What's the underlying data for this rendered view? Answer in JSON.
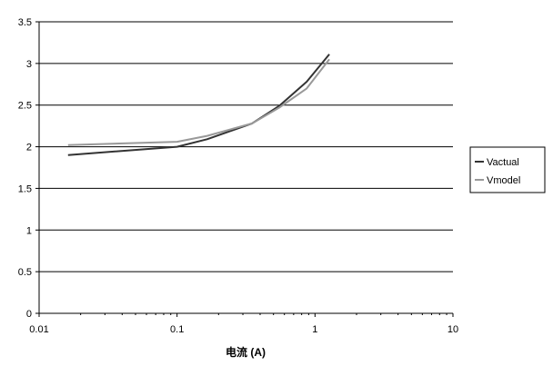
{
  "chart_data": {
    "type": "line",
    "title": "",
    "xlabel": "电流 (A)",
    "ylabel": "",
    "xscale": "log",
    "xlim": [
      0.01,
      10
    ],
    "ylim": [
      0,
      3.5
    ],
    "xticks": [
      "0.01",
      "0.1",
      "1",
      "10"
    ],
    "yticks": [
      "0",
      "0.5",
      "1",
      "1.5",
      "2",
      "2.5",
      "3",
      "3.5"
    ],
    "grid": "horizontal",
    "legend": "right",
    "series": [
      {
        "name": "Vactual",
        "color": "#333333",
        "x": [
          0.0162,
          0.1,
          0.165,
          0.35,
          0.55,
          0.87,
          1.27
        ],
        "y": [
          1.9,
          2.0,
          2.09,
          2.28,
          2.49,
          2.78,
          3.11
        ]
      },
      {
        "name": "Vmodel",
        "color": "#999999",
        "x": [
          0.0162,
          0.1,
          0.165,
          0.35,
          0.55,
          0.87,
          1.27
        ],
        "y": [
          2.02,
          2.06,
          2.13,
          2.28,
          2.47,
          2.7,
          3.05
        ]
      }
    ]
  }
}
